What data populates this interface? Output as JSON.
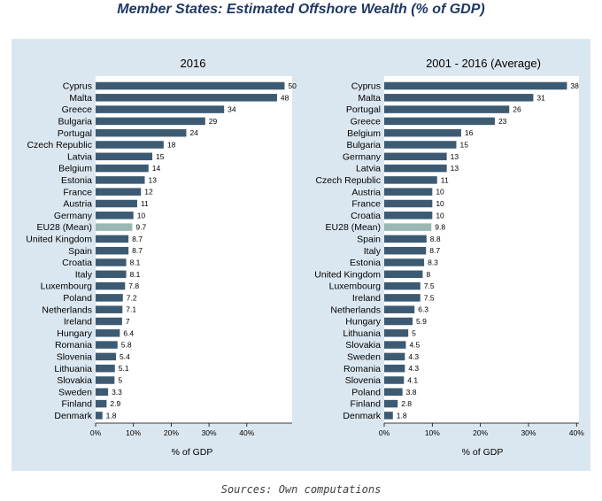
{
  "title": "Member States: Estimated Offshore Wealth (% of GDP)",
  "source_note": "Sources: Own computations",
  "colors": {
    "bar": "#3d5a73",
    "highlight": "#9ab8b3",
    "panel": "#dbe7f0",
    "plot": "#ffffff",
    "title": "#1f3864"
  },
  "chart_data": [
    {
      "type": "bar",
      "orientation": "horizontal",
      "title": "2016",
      "xlabel": "% of GDP",
      "ylabel": "",
      "xlim": [
        0,
        52
      ],
      "xticks": [
        0,
        10,
        20,
        30,
        40
      ],
      "xtick_labels": [
        "0%",
        "10%",
        "20%",
        "30%",
        "40%"
      ],
      "highlight_category": "EU28 (Mean)",
      "categories": [
        "Cyprus",
        "Malta",
        "Greece",
        "Bulgaria",
        "Portugal",
        "Czech Republic",
        "Latvia",
        "Belgium",
        "Estonia",
        "France",
        "Austria",
        "Germany",
        "EU28 (Mean)",
        "United Kingdom",
        "Spain",
        "Croatia",
        "Italy",
        "Luxembourg",
        "Poland",
        "Netherlands",
        "Ireland",
        "Hungary",
        "Romania",
        "Slovenia",
        "Lithuania",
        "Slovakia",
        "Sweden",
        "Finland",
        "Denmark"
      ],
      "values": [
        50,
        48,
        34,
        29,
        24,
        18,
        15,
        14,
        13,
        12,
        11,
        10,
        9.7,
        8.7,
        8.7,
        8.1,
        8.1,
        7.8,
        7.2,
        7.1,
        7,
        6.4,
        5.8,
        5.4,
        5.1,
        5,
        3.3,
        2.9,
        1.8
      ]
    },
    {
      "type": "bar",
      "orientation": "horizontal",
      "title": "2001 - 2016 (Average)",
      "xlabel": "% of GDP",
      "ylabel": "",
      "xlim": [
        0,
        40.5
      ],
      "xticks": [
        0,
        10,
        20,
        30,
        40
      ],
      "xtick_labels": [
        "0%",
        "10%",
        "20%",
        "30%",
        "40%"
      ],
      "highlight_category": "EU28 (Mean)",
      "categories": [
        "Cyprus",
        "Malta",
        "Portugal",
        "Greece",
        "Belgium",
        "Bulgaria",
        "Germany",
        "Latvia",
        "Czech Republic",
        "Austria",
        "France",
        "Croatia",
        "EU28 (Mean)",
        "Spain",
        "Italy",
        "Estonia",
        "United Kingdom",
        "Luxembourg",
        "Ireland",
        "Netherlands",
        "Hungary",
        "Lithuania",
        "Slovakia",
        "Sweden",
        "Romania",
        "Slovenia",
        "Poland",
        "Finland",
        "Denmark"
      ],
      "values": [
        38,
        31,
        26,
        23,
        16,
        15,
        13,
        13,
        11,
        10,
        10,
        10,
        9.8,
        8.8,
        8.7,
        8.3,
        8,
        7.5,
        7.5,
        6.3,
        5.9,
        5,
        4.5,
        4.3,
        4.3,
        4.1,
        3.8,
        2.8,
        1.8
      ]
    }
  ]
}
